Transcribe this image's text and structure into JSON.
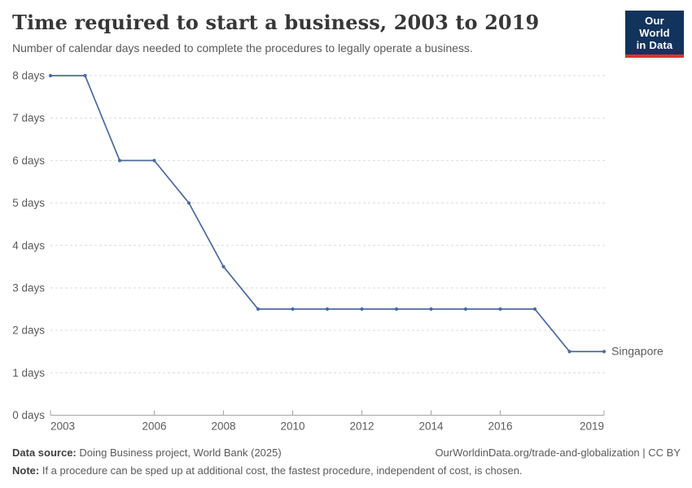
{
  "header": {
    "title": "Time required to start a business, 2003 to 2019",
    "subtitle": "Number of calendar days needed to complete the procedures to legally operate a business.",
    "logo": {
      "line1": "Our World",
      "line2": "in Data",
      "bg_color": "#12335c",
      "accent_color": "#dc342b"
    }
  },
  "chart_data": {
    "type": "line",
    "title": "Time required to start a business, 2003 to 2019",
    "xlabel": "",
    "ylabel": "",
    "x": [
      2003,
      2004,
      2005,
      2006,
      2007,
      2008,
      2009,
      2010,
      2011,
      2012,
      2013,
      2014,
      2015,
      2016,
      2017,
      2018,
      2019
    ],
    "series": [
      {
        "name": "Singapore",
        "color": "#4c6a9c",
        "values": [
          8,
          8,
          6,
          6,
          5,
          3.5,
          2.5,
          2.5,
          2.5,
          2.5,
          2.5,
          2.5,
          2.5,
          2.5,
          2.5,
          1.5,
          1.5
        ]
      }
    ],
    "xlim": [
      2003,
      2019
    ],
    "ylim": [
      0,
      8
    ],
    "xticks": [
      2003,
      2006,
      2008,
      2010,
      2012,
      2014,
      2016,
      2019
    ],
    "yticks": [
      0,
      1,
      2,
      3,
      4,
      5,
      6,
      7,
      8
    ],
    "ytick_suffix": " days",
    "grid": "horizontal-dashed",
    "grid_color": "#dadada",
    "axis_color": "#a5a5a5",
    "tick_label_color": "#5b5b5b",
    "legend_position": "end-of-line-label"
  },
  "footer": {
    "source_label": "Data source:",
    "source_text": " Doing Business project, World Bank (2025)",
    "attribution": "OurWorldinData.org/trade-and-globalization | CC BY",
    "note_label": "Note:",
    "note_text": " If a procedure can be sped up at additional cost, the fastest procedure, independent of cost, is chosen."
  }
}
